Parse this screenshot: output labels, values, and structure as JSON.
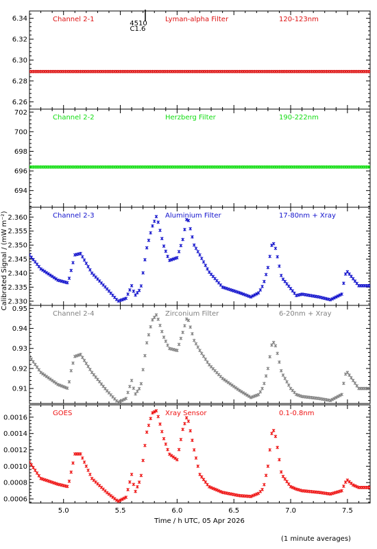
{
  "figure": {
    "xlabel": "Time / h UTC, 05 Apr 2026",
    "ylabel": "Calibrated Signal / (mW m⁻²)",
    "footnote": "(1 minute averages)",
    "flare_marker": {
      "id": "4510",
      "class": "C1.6",
      "time": 5.72
    }
  },
  "chart_data": [
    {
      "type": "scatter",
      "panel": "Channel 2-1",
      "texts": [
        "Channel 2-1",
        "Lyman-alpha Filter",
        "120-123nm"
      ],
      "color": "#dd1111",
      "xlim": [
        4.7,
        7.7
      ],
      "ylim": [
        6.253,
        6.347
      ],
      "yticks": [
        6.26,
        6.28,
        6.3,
        6.32,
        6.34
      ],
      "ytick_labels": [
        "6.26",
        "6.28",
        "6.30",
        "6.32",
        "6.34"
      ],
      "x": [
        4.7,
        7.7
      ],
      "y": [
        6.289,
        6.289
      ],
      "curve": "flat"
    },
    {
      "type": "scatter",
      "panel": "Channel 2-2",
      "texts": [
        "Channel 2-2",
        "Herzberg Filter",
        "190-222nm"
      ],
      "color": "#11dd11",
      "xlim": [
        4.7,
        7.7
      ],
      "ylim": [
        692.3,
        702.3
      ],
      "yticks": [
        694,
        696,
        698,
        700,
        702
      ],
      "ytick_labels": [
        "694",
        "696",
        "698",
        "700",
        "702"
      ],
      "x": [
        4.7,
        7.7
      ],
      "y": [
        696.4,
        696.4
      ],
      "curve": "flat"
    },
    {
      "type": "scatter",
      "panel": "Channel 2-3",
      "texts": [
        "Channel 2-3",
        "Aluminium Filter",
        "17-80nm + Xray"
      ],
      "color": "#1111cc",
      "xlim": [
        4.7,
        7.7
      ],
      "ylim": [
        2.3285,
        2.3635
      ],
      "yticks": [
        2.33,
        2.335,
        2.34,
        2.345,
        2.35,
        2.355,
        2.36
      ],
      "ytick_labels": [
        "2.330",
        "2.335",
        "2.340",
        "2.345",
        "2.350",
        "2.355",
        "2.360"
      ],
      "x": [
        4.7,
        4.8,
        4.95,
        5.04,
        5.07,
        5.1,
        5.15,
        5.25,
        5.38,
        5.48,
        5.55,
        5.6,
        5.63,
        5.68,
        5.73,
        5.78,
        5.82,
        5.88,
        5.93,
        6.0,
        6.05,
        6.09,
        6.15,
        6.2,
        6.28,
        6.4,
        6.55,
        6.65,
        6.72,
        6.76,
        6.8,
        6.84,
        6.87,
        6.92,
        7.0,
        7.05,
        7.1,
        7.25,
        7.35,
        7.45,
        7.48,
        7.5,
        7.55,
        7.6,
        7.7
      ],
      "y": [
        2.3465,
        2.3415,
        2.3375,
        2.3365,
        2.3415,
        2.3465,
        2.347,
        2.34,
        2.3345,
        2.33,
        2.331,
        2.3355,
        2.332,
        2.3345,
        2.3485,
        2.3565,
        2.3605,
        2.35,
        2.3445,
        2.3455,
        2.352,
        2.3605,
        2.35,
        2.3465,
        2.3405,
        2.335,
        2.333,
        2.3315,
        2.333,
        2.336,
        2.342,
        2.3515,
        2.3485,
        2.3385,
        2.3345,
        2.332,
        2.3325,
        2.3315,
        2.3305,
        2.3325,
        2.3395,
        2.3405,
        2.338,
        2.3355,
        2.3355
      ],
      "curve": "smooth"
    },
    {
      "type": "scatter",
      "panel": "Channel 2-4",
      "texts": [
        "Channel 2-4",
        "Zirconium Filter",
        "6-20nm + Xray"
      ],
      "color": "#808080",
      "xlim": [
        4.7,
        7.7
      ],
      "ylim": [
        0.9025,
        0.9515
      ],
      "yticks": [
        0.91,
        0.92,
        0.93,
        0.94,
        0.95
      ],
      "ytick_labels": [
        "0.91",
        "0.92",
        "0.93",
        "0.94",
        "0.95"
      ],
      "x": [
        4.7,
        4.8,
        4.95,
        5.04,
        5.07,
        5.1,
        5.15,
        5.25,
        5.38,
        5.48,
        5.55,
        5.6,
        5.63,
        5.68,
        5.73,
        5.78,
        5.82,
        5.88,
        5.93,
        6.0,
        6.05,
        6.09,
        6.15,
        6.2,
        6.28,
        6.4,
        6.55,
        6.65,
        6.72,
        6.76,
        6.8,
        6.84,
        6.87,
        6.92,
        7.0,
        7.05,
        7.1,
        7.25,
        7.35,
        7.45,
        7.48,
        7.5,
        7.55,
        7.6,
        7.7
      ],
      "y": [
        0.926,
        0.918,
        0.912,
        0.91,
        0.92,
        0.926,
        0.927,
        0.918,
        0.909,
        0.903,
        0.905,
        0.914,
        0.907,
        0.911,
        0.932,
        0.944,
        0.947,
        0.936,
        0.93,
        0.929,
        0.938,
        0.946,
        0.934,
        0.929,
        0.922,
        0.915,
        0.909,
        0.9055,
        0.907,
        0.911,
        0.92,
        0.934,
        0.931,
        0.918,
        0.91,
        0.907,
        0.906,
        0.905,
        0.904,
        0.907,
        0.917,
        0.918,
        0.914,
        0.91,
        0.91
      ],
      "curve": "smooth"
    },
    {
      "type": "scatter",
      "panel": "GOES",
      "texts": [
        "GOES",
        "Xray Sensor",
        "0.1-0.8nm"
      ],
      "color": "#ee1111",
      "xlim": [
        4.7,
        7.7
      ],
      "ylim": [
        0.00055,
        0.00175
      ],
      "yticks": [
        0.0006,
        0.0008,
        0.001,
        0.0012,
        0.0014,
        0.0016
      ],
      "ytick_labels": [
        "0.0006",
        "0.0008",
        "0.0010",
        "0.0012",
        "0.0014",
        "0.0016"
      ],
      "x": [
        4.7,
        4.8,
        4.95,
        5.04,
        5.07,
        5.1,
        5.15,
        5.25,
        5.38,
        5.48,
        5.55,
        5.6,
        5.63,
        5.68,
        5.73,
        5.78,
        5.82,
        5.88,
        5.93,
        6.0,
        6.05,
        6.09,
        6.15,
        6.2,
        6.28,
        6.4,
        6.55,
        6.65,
        6.72,
        6.76,
        6.8,
        6.84,
        6.87,
        6.92,
        7.0,
        7.05,
        7.1,
        7.25,
        7.35,
        7.45,
        7.48,
        7.5,
        7.55,
        7.6,
        7.7
      ],
      "y": [
        0.00105,
        0.00085,
        0.00078,
        0.00075,
        0.00095,
        0.00115,
        0.00115,
        0.00085,
        0.00068,
        0.00057,
        0.00062,
        0.0009,
        0.00068,
        0.00085,
        0.0014,
        0.00165,
        0.00168,
        0.00135,
        0.00115,
        0.00108,
        0.00145,
        0.00162,
        0.0012,
        0.0009,
        0.00075,
        0.00068,
        0.00064,
        0.00063,
        0.00067,
        0.00073,
        0.001,
        0.00148,
        0.00135,
        0.0009,
        0.00075,
        0.00072,
        0.0007,
        0.00068,
        0.00066,
        0.0007,
        0.0008,
        0.00083,
        0.00077,
        0.00074,
        0.00074
      ],
      "curve": "smooth"
    }
  ],
  "xaxis": {
    "ticks": [
      5.0,
      5.5,
      6.0,
      6.5,
      7.0,
      7.5
    ],
    "tick_labels": [
      "5.0",
      "5.5",
      "6.0",
      "6.5",
      "7.0",
      "7.5"
    ]
  }
}
